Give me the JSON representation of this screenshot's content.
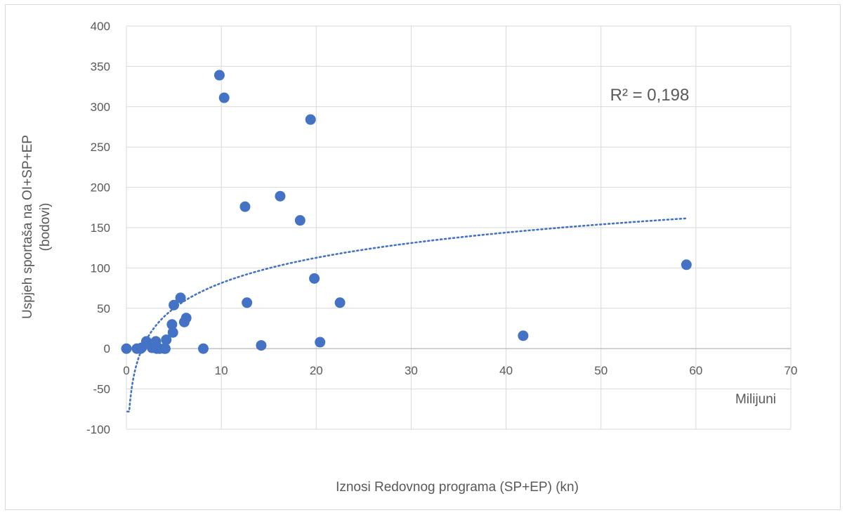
{
  "chart_data": {
    "type": "scatter",
    "xlabel": "Iznosi Redovnog programa (SP+EP) (kn)",
    "ylabel_lines": [
      "Uspjeh sportaša na OI+SP+EP",
      "(bodovi)"
    ],
    "x_unit_label": "Milijuni",
    "xlim": [
      0,
      70
    ],
    "ylim": [
      -100,
      400
    ],
    "x_ticks": [
      0,
      10,
      20,
      30,
      40,
      50,
      60,
      70
    ],
    "y_ticks": [
      -100,
      -50,
      0,
      50,
      100,
      150,
      200,
      250,
      300,
      350,
      400
    ],
    "grid": true,
    "marker_color": "#4472c4",
    "trendline": {
      "type": "logarithmic",
      "style": "dotted",
      "color": "#4472c4",
      "r2_label": "R² = 0,198",
      "x_range": [
        0.1,
        59
      ]
    },
    "points": [
      [
        0,
        0
      ],
      [
        1.1,
        0
      ],
      [
        1.5,
        0
      ],
      [
        1.6,
        1
      ],
      [
        2.1,
        9
      ],
      [
        2.7,
        1
      ],
      [
        3,
        4
      ],
      [
        3.1,
        9
      ],
      [
        3.2,
        0
      ],
      [
        3.5,
        0
      ],
      [
        4,
        0
      ],
      [
        4.1,
        0
      ],
      [
        4.2,
        11
      ],
      [
        4.8,
        30
      ],
      [
        4.9,
        20
      ],
      [
        5,
        54
      ],
      [
        5.7,
        63
      ],
      [
        6.1,
        33
      ],
      [
        6.3,
        38
      ],
      [
        8.1,
        0
      ],
      [
        9.8,
        339
      ],
      [
        10.3,
        311
      ],
      [
        12.5,
        176
      ],
      [
        12.7,
        57
      ],
      [
        14.2,
        4
      ],
      [
        16.2,
        189
      ],
      [
        18.3,
        159
      ],
      [
        19.4,
        284
      ],
      [
        19.8,
        87
      ],
      [
        20.4,
        8
      ],
      [
        22.5,
        57
      ],
      [
        41.8,
        16
      ],
      [
        59,
        104
      ]
    ]
  }
}
